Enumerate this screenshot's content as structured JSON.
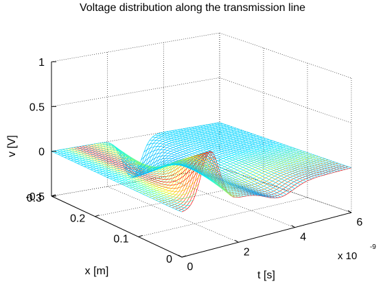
{
  "chart_data": {
    "type": "surface",
    "title": "Voltage distribution along the transmission line",
    "xlabel": "t [s]",
    "ylabel": "x [m]",
    "zlabel": "v [V]",
    "x_scale_label": "x 10",
    "x_scale_exponent": "-9",
    "x_ticks": [
      "0",
      "2",
      "4",
      "6"
    ],
    "y_ticks": [
      "0",
      "0.1",
      "0.2",
      "0.3"
    ],
    "z_ticks": [
      "-0.5",
      "0",
      "0.5",
      "1"
    ],
    "t_range": [
      0,
      6e-09
    ],
    "x_range": [
      0,
      0.3
    ],
    "z_range": [
      -0.5,
      1
    ],
    "grid": true,
    "colormap": "jet",
    "surface_peak_value": 0.63,
    "surface_trough_value": -0.37
  }
}
